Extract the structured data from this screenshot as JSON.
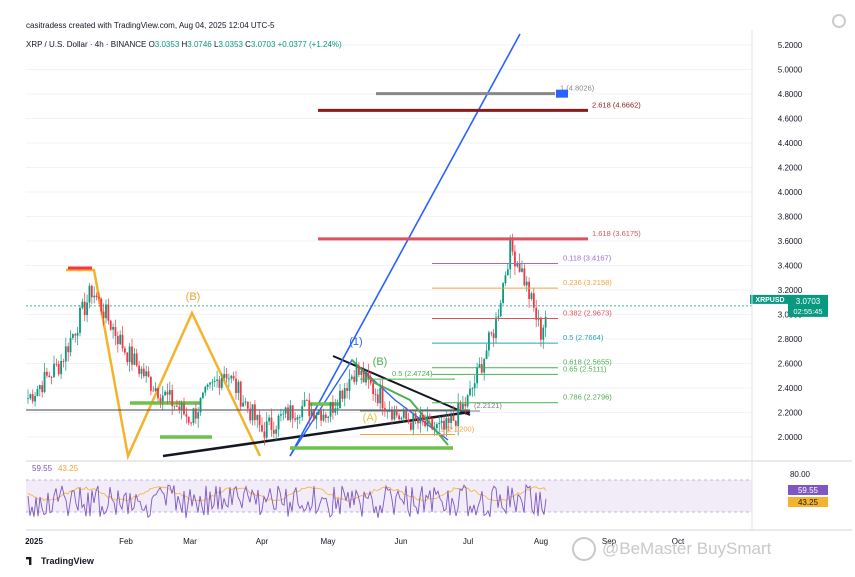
{
  "header": {
    "credit": "casitradess created with TradingView.com, Aug 04, 2025 12:04 UTC-5",
    "symbol_line": "XRP / U.S. Dollar · 4h · BINANCE",
    "ohlc": {
      "o_label": "O",
      "o": "3.0353",
      "h_label": "H",
      "h": "3.0746",
      "l_label": "L",
      "l": "3.0353",
      "c_label": "C",
      "c": "3.0703",
      "change": "+0.0377 (+1.24%)"
    }
  },
  "branding": {
    "tradingview": "TradingView",
    "watermark": "@BeMaster BuySmart"
  },
  "price_badge": {
    "symbol": "XRPUSD",
    "price": "3.0703",
    "countdown": "02:55:45"
  },
  "rsi_badges": {
    "rsi": "59.55",
    "ma": "43.25"
  },
  "colors": {
    "up": "#089981",
    "down": "#f23645",
    "fib_red": "#e0505e",
    "fib_purple": "#9c6bd6",
    "fib_orange": "#f2a33a",
    "fib_teal": "#22a6b3",
    "fib_green": "#4caf50",
    "blue_line": "#2962ff",
    "yellow": "#f5b32b",
    "grey": "#787b86"
  },
  "chart_data": [
    {
      "type": "candlestick",
      "title": "XRP / U.S. Dollar · 4h · BINANCE",
      "y_axis_ticks": [
        "5.2000",
        "5.0000",
        "4.8000",
        "4.6000",
        "4.4000",
        "4.2000",
        "4.0000",
        "3.8000",
        "3.6000",
        "3.4000",
        "3.2000",
        "3.0000",
        "2.8000",
        "2.6000",
        "2.4000",
        "2.2000",
        "2.0000"
      ],
      "ylim": [
        1.83,
        5.3
      ],
      "x_axis_ticks": [
        "2025",
        "Feb",
        "Mar",
        "Apr",
        "May",
        "Jun",
        "Jul",
        "Aug",
        "Sep",
        "Oct"
      ],
      "series_close_approx": {
        "x": [
          "2025",
          "Jan 15",
          "Jan 20",
          "Feb",
          "Feb 10",
          "Mar",
          "Mar 20",
          "Apr",
          "Apr 20",
          "May",
          "May 12",
          "Jun",
          "Jun 22",
          "Jul",
          "Jul 12",
          "Jul 18",
          "Jul 23",
          "Aug",
          "Aug 4"
        ],
        "y": [
          2.3,
          2.6,
          3.2,
          2.7,
          2.45,
          2.15,
          2.55,
          2.05,
          2.25,
          2.2,
          2.55,
          2.15,
          2.05,
          2.3,
          2.9,
          3.55,
          3.4,
          2.85,
          3.07
        ]
      },
      "fib_levels": [
        {
          "ratio": "1",
          "value": "(4.8026)",
          "price": 4.8026
        },
        {
          "ratio": "2.618",
          "value": "(4.6662)",
          "price": 4.6662
        },
        {
          "ratio": "1.618",
          "value": "(3.6175)",
          "price": 3.6175
        },
        {
          "ratio": "0.118",
          "value": "(3.4167)",
          "price": 3.4167
        },
        {
          "ratio": "0.236",
          "value": "(3.2158)",
          "price": 3.2158
        },
        {
          "ratio": "0.382",
          "value": "(2.9673)",
          "price": 2.9673
        },
        {
          "ratio": "0.5",
          "value": "(2.7664)",
          "price": 2.7664
        },
        {
          "ratio": "0.618",
          "value": "(2.5655)",
          "price": 2.5655
        },
        {
          "ratio": "0.65",
          "value": "(2.5111)",
          "price": 2.5111
        },
        {
          "ratio": "0.786",
          "value": "(2.2796)",
          "price": 2.2796
        },
        {
          "ratio": "0.5",
          "value": "(2.4724)",
          "price": 2.4724
        },
        {
          "ratio": "",
          "value": "(2.2121)",
          "price": 2.2121
        },
        {
          "ratio": "1",
          "value": "(2.0200)",
          "price": 2.02
        }
      ],
      "wave_labels": [
        "(B)",
        "(1)",
        "(B)",
        "(A)"
      ]
    },
    {
      "type": "line",
      "title": "RSI",
      "values_shown": [
        "59.55",
        "43.25"
      ],
      "y_axis_ticks": [
        "80.00"
      ]
    }
  ]
}
